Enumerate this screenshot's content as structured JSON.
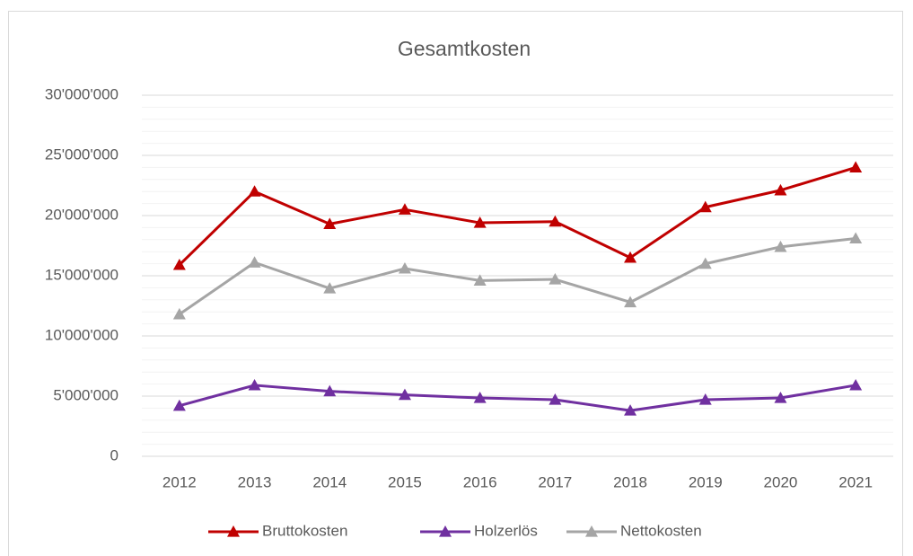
{
  "chart_data": {
    "type": "line",
    "title": "Gesamtkosten",
    "categories": [
      "2012",
      "2013",
      "2014",
      "2015",
      "2016",
      "2017",
      "2018",
      "2019",
      "2020",
      "2021"
    ],
    "series": [
      {
        "name": "Bruttokosten",
        "color": "#c00000",
        "values": [
          15900000,
          22000000,
          19300000,
          20500000,
          19400000,
          19500000,
          16500000,
          20700000,
          22100000,
          24000000
        ]
      },
      {
        "name": "Holzerlös",
        "color": "#7030a0",
        "values": [
          4200000,
          5900000,
          5400000,
          5100000,
          4850000,
          4700000,
          3800000,
          4700000,
          4850000,
          5900000
        ]
      },
      {
        "name": "Nettokosten",
        "color": "#a5a5a5",
        "values": [
          11800000,
          16100000,
          13950000,
          15600000,
          14600000,
          14700000,
          12800000,
          16000000,
          17400000,
          18100000
        ]
      }
    ],
    "ylim": [
      0,
      30000000
    ],
    "yticks": [
      0,
      {
        "value": 5000000,
        "label": "5'000'000"
      },
      {
        "value": 10000000,
        "label": "10'000'000"
      },
      {
        "value": 15000000,
        "label": "15'000'000"
      },
      {
        "value": 20000000,
        "label": "20'000'000"
      },
      {
        "value": 25000000,
        "label": "25'000'000"
      },
      {
        "value": 30000000,
        "label": "30'000'000"
      }
    ],
    "grid": true,
    "minor_grid": true,
    "legend": "bottom"
  }
}
